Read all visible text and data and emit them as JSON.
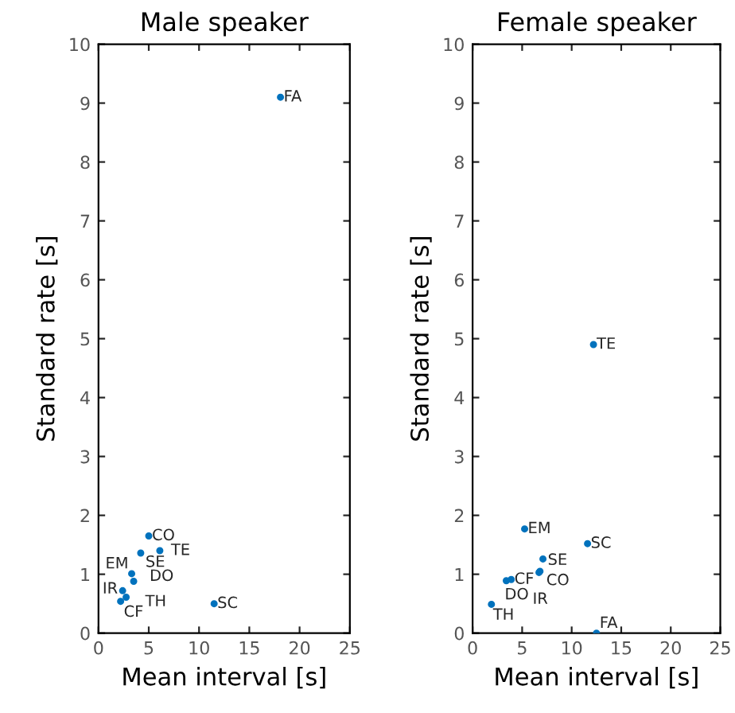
{
  "chart_data": [
    {
      "type": "scatter",
      "title": "Male speaker",
      "xlabel": "Mean interval [s]",
      "ylabel": "Standard rate [s]",
      "xlim": [
        0,
        25
      ],
      "xticks": [
        0,
        5,
        10,
        15,
        20,
        25
      ],
      "ylim": [
        0,
        10
      ],
      "yticks": [
        0,
        1,
        2,
        3,
        4,
        5,
        6,
        7,
        8,
        9,
        10
      ],
      "grid": false,
      "marker": "circle",
      "series": [
        {
          "color": "#0072bd",
          "x": [
            18.1,
            5.0,
            4.2,
            6.1,
            3.3,
            3.5,
            2.4,
            2.75,
            2.2,
            11.5
          ],
          "values": [
            9.1,
            1.65,
            1.36,
            1.4,
            1.01,
            0.88,
            0.72,
            0.61,
            0.54,
            0.5
          ],
          "value_labels": [
            "FA",
            "CO",
            "SE",
            "TE",
            "EM",
            "DO",
            "IR",
            "TH",
            "CF",
            "SC"
          ]
        }
      ]
    },
    {
      "type": "scatter",
      "title": "Female speaker",
      "xlabel": "Mean interval [s]",
      "ylabel": "Standard rate [s]",
      "xlim": [
        0,
        25
      ],
      "xticks": [
        0,
        5,
        10,
        15,
        20,
        25
      ],
      "ylim": [
        0,
        10
      ],
      "yticks": [
        0,
        1,
        2,
        3,
        4,
        5,
        6,
        7,
        8,
        9,
        10
      ],
      "grid": false,
      "marker": "circle",
      "series": [
        {
          "color": "#0072bd",
          "x": [
            12.2,
            5.25,
            11.6,
            7.1,
            6.8,
            3.9,
            3.4,
            6.7,
            1.9,
            12.5
          ],
          "values": [
            4.9,
            1.77,
            1.52,
            1.26,
            1.05,
            0.91,
            0.89,
            1.03,
            0.49,
            0.0
          ],
          "value_labels": [
            "TE",
            "EM",
            "SC",
            "SE",
            "CO",
            "CF",
            "DO",
            "IR",
            "TH",
            "FA"
          ]
        }
      ]
    }
  ]
}
